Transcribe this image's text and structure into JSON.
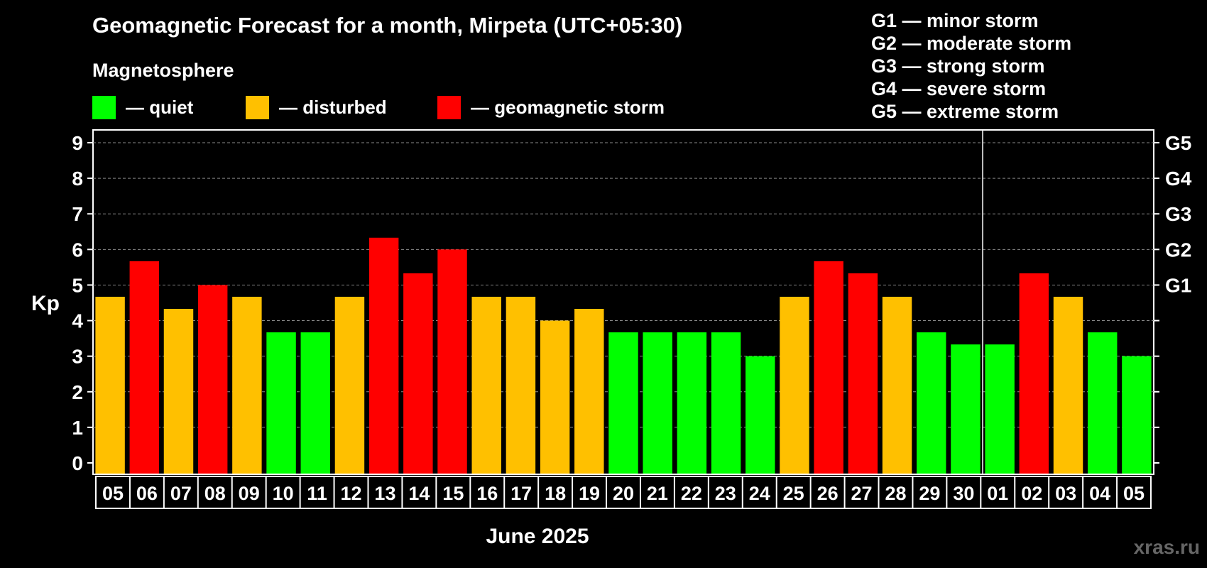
{
  "title": "Geomagnetic Forecast for a month, Mirpeta (UTC+05:30)",
  "legend": {
    "heading": "Magnetosphere",
    "items": [
      {
        "label": "— quiet",
        "color": "#00ff00"
      },
      {
        "label": "— disturbed",
        "color": "#ffc000"
      },
      {
        "label": "— geomagnetic storm",
        "color": "#ff0000"
      }
    ]
  },
  "storm_levels": [
    "G1 — minor storm",
    "G2 — moderate storm",
    "G3 — strong storm",
    "G4 — severe storm",
    "G5 — extreme storm"
  ],
  "watermark": "xras.ru",
  "chart_data": {
    "type": "bar",
    "title": "Geomagnetic Forecast for a month, Mirpeta (UTC+05:30)",
    "xlabel": "June 2025",
    "ylabel": "Kp",
    "ylim": [
      0,
      9
    ],
    "yticks": [
      "0",
      "1",
      "2",
      "3",
      "4",
      "5",
      "6",
      "7",
      "8",
      "9"
    ],
    "right_axis_labels": [
      {
        "kp": 5,
        "label": "G1"
      },
      {
        "kp": 6,
        "label": "G2"
      },
      {
        "kp": 7,
        "label": "G3"
      },
      {
        "kp": 8,
        "label": "G4"
      },
      {
        "kp": 9,
        "label": "G5"
      }
    ],
    "month_divider_after_index": 25,
    "grid": true,
    "categories": [
      "05",
      "06",
      "07",
      "08",
      "09",
      "10",
      "11",
      "12",
      "13",
      "14",
      "15",
      "16",
      "17",
      "18",
      "19",
      "20",
      "21",
      "22",
      "23",
      "24",
      "25",
      "26",
      "27",
      "28",
      "29",
      "30",
      "01",
      "02",
      "03",
      "04",
      "05"
    ],
    "values": [
      4.67,
      5.67,
      4.33,
      5.0,
      4.67,
      3.67,
      3.67,
      4.67,
      6.33,
      5.33,
      6.0,
      4.67,
      4.67,
      4.0,
      4.33,
      3.67,
      3.67,
      3.67,
      3.67,
      3.0,
      4.67,
      5.67,
      5.33,
      4.67,
      3.67,
      3.33,
      3.33,
      5.33,
      4.67,
      3.67,
      3.0
    ],
    "status": [
      "disturbed",
      "storm",
      "disturbed",
      "storm",
      "disturbed",
      "quiet",
      "quiet",
      "disturbed",
      "storm",
      "storm",
      "storm",
      "disturbed",
      "disturbed",
      "disturbed",
      "disturbed",
      "quiet",
      "quiet",
      "quiet",
      "quiet",
      "quiet",
      "disturbed",
      "storm",
      "storm",
      "disturbed",
      "quiet",
      "quiet",
      "quiet",
      "storm",
      "disturbed",
      "quiet",
      "quiet"
    ],
    "colors": {
      "quiet": "#00ff00",
      "disturbed": "#ffc000",
      "storm": "#ff0000"
    }
  }
}
